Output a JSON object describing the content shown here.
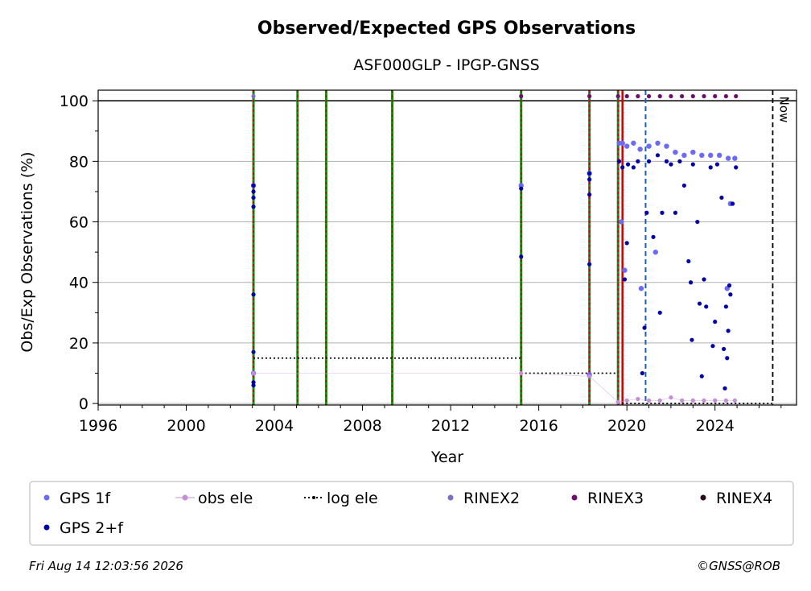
{
  "chart_data": {
    "type": "scatter",
    "title": "Observed/Expected GPS Observations",
    "subtitle": "ASF000GLP - IPGP-GNSS",
    "xlabel": "Year",
    "ylabel": "Obs/Exp Observations (%)",
    "xlim": [
      1996,
      2027.7
    ],
    "ylim": [
      -0.5,
      103.5
    ],
    "x_ticks": [
      1996,
      2000,
      2004,
      2008,
      2012,
      2016,
      2020,
      2024
    ],
    "y_ticks": [
      0,
      20,
      40,
      60,
      80,
      100
    ],
    "grid": "horizontal",
    "legend_position": "bottom",
    "now_label": "Now",
    "now_x": 2026.62,
    "legend": [
      {
        "label": "GPS 1f",
        "marker": "dot",
        "color": "#6b6bf5"
      },
      {
        "label": "obs ele",
        "marker": "dot-line",
        "color": "#c48fd6"
      },
      {
        "label": "log ele",
        "marker": "dotted-line",
        "color": "#000000"
      },
      {
        "label": "RINEX2",
        "marker": "dot",
        "color": "#7b6fc0"
      },
      {
        "label": "RINEX3",
        "marker": "dot",
        "color": "#6b0f6b"
      },
      {
        "label": "RINEX4",
        "marker": "dot",
        "color": "#2a0a1a"
      },
      {
        "label": "GPS 2+f",
        "marker": "dot",
        "color": "#0000a8"
      }
    ],
    "vertical_lines": [
      {
        "x": 2003.05,
        "style": "green-red-dashed"
      },
      {
        "x": 2005.05,
        "style": "green-red-dashed"
      },
      {
        "x": 2006.35,
        "style": "green-red-dashed"
      },
      {
        "x": 2009.35,
        "style": "green-red-dashed"
      },
      {
        "x": 2015.2,
        "style": "green-red-dashed"
      },
      {
        "x": 2018.3,
        "style": "green-red-dashed"
      },
      {
        "x": 2019.6,
        "style": "green-red-dashed"
      },
      {
        "x": 2019.8,
        "style": "red-solid"
      },
      {
        "x": 2020.85,
        "style": "blue-dashed"
      }
    ],
    "log_ele": [
      {
        "x0": 2003.05,
        "x1": 2015.2,
        "y": 15
      },
      {
        "x0": 2015.2,
        "x1": 2019.6,
        "y": 10
      },
      {
        "x0": 2019.6,
        "x1": 2026.62,
        "y": 0
      }
    ],
    "series": [
      {
        "name": "GPS 1f",
        "color": "#6b6bf5",
        "points": [
          [
            2003.05,
            10
          ],
          [
            2003.05,
            72
          ],
          [
            2015.2,
            72
          ],
          [
            2018.3,
            76
          ],
          [
            2018.3,
            9.5
          ],
          [
            2019.65,
            86
          ],
          [
            2019.8,
            86
          ],
          [
            2020.0,
            85
          ],
          [
            2020.3,
            86
          ],
          [
            2020.6,
            84
          ],
          [
            2021.0,
            85
          ],
          [
            2021.4,
            86
          ],
          [
            2021.8,
            85
          ],
          [
            2022.2,
            83
          ],
          [
            2022.6,
            82
          ],
          [
            2023.0,
            83
          ],
          [
            2023.4,
            82
          ],
          [
            2023.8,
            82
          ],
          [
            2024.2,
            82
          ],
          [
            2024.6,
            81
          ],
          [
            2024.9,
            81
          ],
          [
            2019.75,
            60
          ],
          [
            2019.9,
            44
          ],
          [
            2020.65,
            38
          ],
          [
            2021.3,
            50
          ],
          [
            2024.55,
            38
          ],
          [
            2024.7,
            66
          ]
        ]
      },
      {
        "name": "GPS 2+f",
        "color": "#0000a8",
        "points": [
          [
            2003.05,
            72
          ],
          [
            2003.05,
            70
          ],
          [
            2003.05,
            68
          ],
          [
            2003.05,
            65
          ],
          [
            2003.05,
            36
          ],
          [
            2003.05,
            17
          ],
          [
            2003.05,
            7
          ],
          [
            2003.05,
            6
          ],
          [
            2015.2,
            71
          ],
          [
            2015.2,
            48.5
          ],
          [
            2018.3,
            76
          ],
          [
            2018.3,
            74
          ],
          [
            2018.3,
            69
          ],
          [
            2018.3,
            46
          ],
          [
            2018.3,
            9
          ],
          [
            2019.65,
            80
          ],
          [
            2019.8,
            78
          ],
          [
            2019.9,
            41
          ],
          [
            2020.0,
            53
          ],
          [
            2020.05,
            79
          ],
          [
            2020.3,
            78
          ],
          [
            2020.5,
            80
          ],
          [
            2020.7,
            10
          ],
          [
            2020.8,
            25
          ],
          [
            2020.9,
            63
          ],
          [
            2021.0,
            80
          ],
          [
            2021.2,
            55
          ],
          [
            2021.4,
            82
          ],
          [
            2021.5,
            30
          ],
          [
            2021.6,
            63
          ],
          [
            2021.8,
            80
          ],
          [
            2022.0,
            79
          ],
          [
            2022.2,
            63
          ],
          [
            2022.4,
            80
          ],
          [
            2022.6,
            72
          ],
          [
            2022.8,
            47
          ],
          [
            2022.9,
            40
          ],
          [
            2022.95,
            21
          ],
          [
            2023.0,
            79
          ],
          [
            2023.2,
            60
          ],
          [
            2023.3,
            33
          ],
          [
            2023.4,
            9
          ],
          [
            2023.5,
            41
          ],
          [
            2023.6,
            32
          ],
          [
            2023.8,
            78
          ],
          [
            2023.9,
            19
          ],
          [
            2024.0,
            27
          ],
          [
            2024.1,
            79
          ],
          [
            2024.3,
            68
          ],
          [
            2024.4,
            18
          ],
          [
            2024.45,
            5
          ],
          [
            2024.5,
            32
          ],
          [
            2024.55,
            15
          ],
          [
            2024.6,
            24
          ],
          [
            2024.65,
            39
          ],
          [
            2024.7,
            36
          ],
          [
            2024.8,
            66
          ],
          [
            2024.95,
            78
          ]
        ]
      },
      {
        "name": "obs ele",
        "color": "#c48fd6",
        "points": [
          [
            2003.05,
            10
          ],
          [
            2015.2,
            10
          ],
          [
            2018.3,
            9
          ],
          [
            2019.6,
            0.5
          ],
          [
            2020.0,
            1
          ],
          [
            2020.5,
            1.5
          ],
          [
            2021.0,
            1
          ],
          [
            2021.5,
            1
          ],
          [
            2022.0,
            2
          ],
          [
            2022.5,
            1
          ],
          [
            2023.0,
            1
          ],
          [
            2023.5,
            1
          ],
          [
            2024.0,
            1
          ],
          [
            2024.5,
            1
          ],
          [
            2024.9,
            1
          ]
        ]
      },
      {
        "name": "RINEX2",
        "color": "#7b6fc0",
        "points": [
          [
            2003.05,
            101.5
          ]
        ]
      },
      {
        "name": "RINEX3",
        "color": "#6b0f6b",
        "points": [
          [
            2015.2,
            101.5
          ],
          [
            2018.3,
            101.5
          ],
          [
            2019.6,
            101.5
          ],
          [
            2020.0,
            101.5
          ],
          [
            2020.5,
            101.5
          ],
          [
            2021.0,
            101.5
          ],
          [
            2021.5,
            101.5
          ],
          [
            2022.0,
            101.5
          ],
          [
            2022.5,
            101.5
          ],
          [
            2023.0,
            101.5
          ],
          [
            2023.5,
            101.5
          ],
          [
            2024.0,
            101.5
          ],
          [
            2024.5,
            101.5
          ],
          [
            2024.95,
            101.5
          ]
        ]
      },
      {
        "name": "RINEX4",
        "color": "#2a0a1a",
        "points": []
      }
    ]
  },
  "footer": {
    "date": "Fri Aug 14 12:03:56 2026",
    "credit": "©GNSS@ROB"
  }
}
